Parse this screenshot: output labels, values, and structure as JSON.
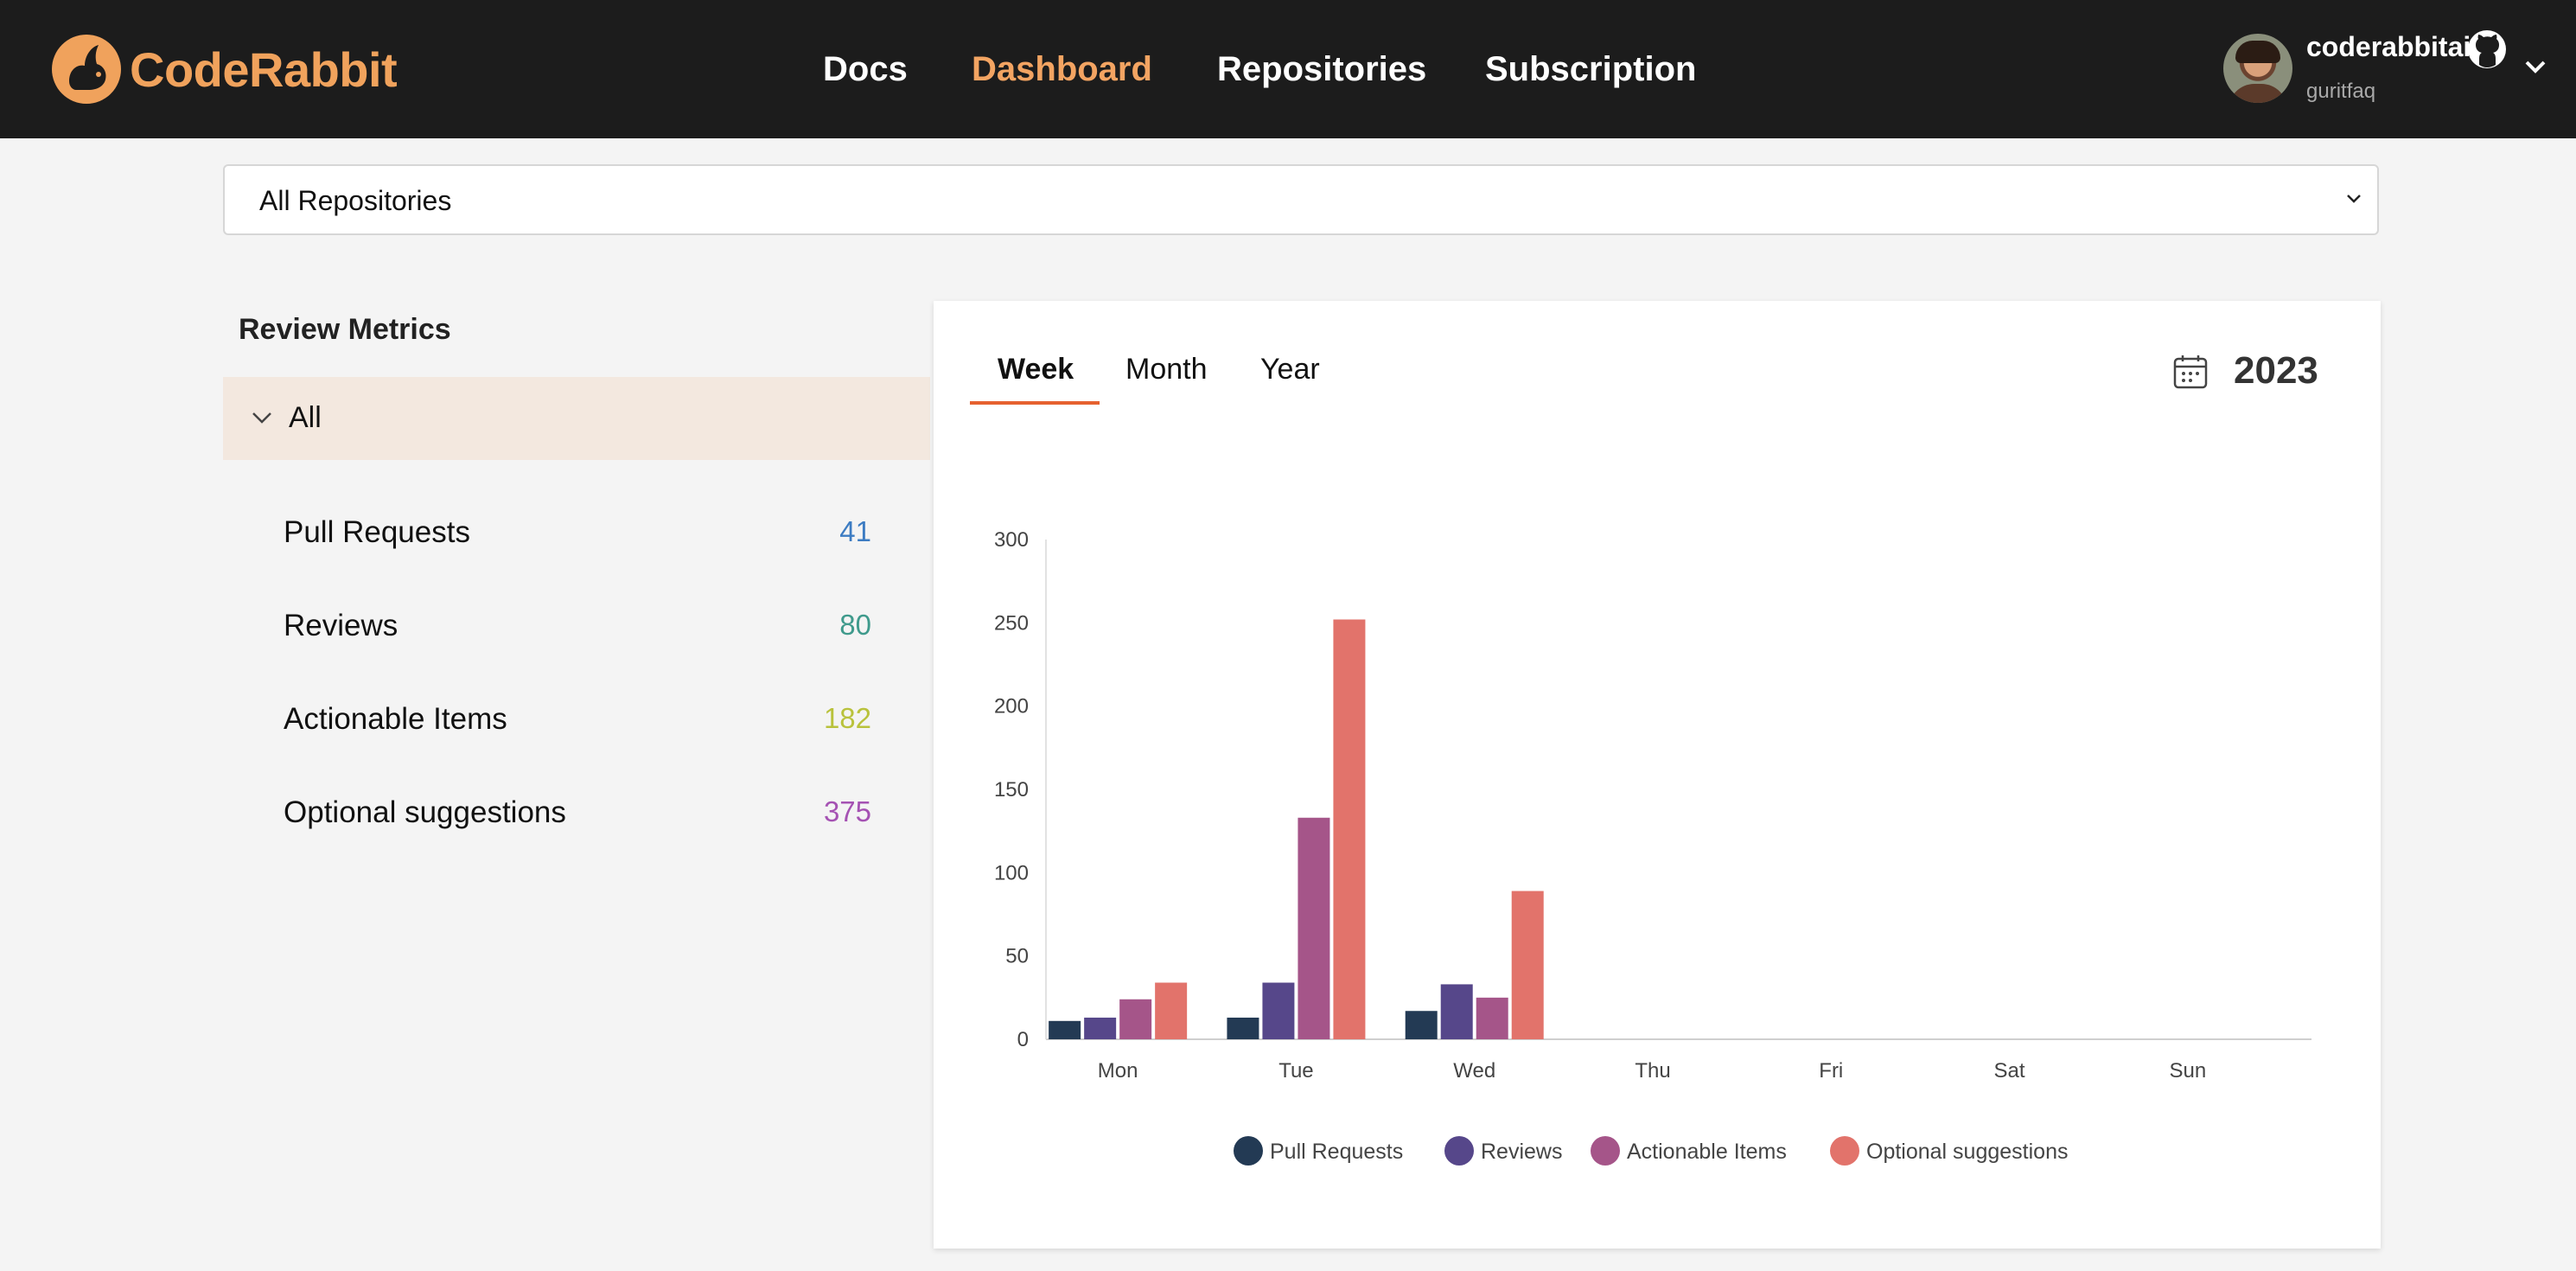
{
  "brand": {
    "name": "CodeRabbit",
    "color": "#f0a25c",
    "icon": "rabbit-logo-icon"
  },
  "nav": {
    "items": [
      {
        "label": "Docs",
        "active": false
      },
      {
        "label": "Dashboard",
        "active": true
      },
      {
        "label": "Repositories",
        "active": false
      },
      {
        "label": "Subscription",
        "active": false
      }
    ],
    "active_color": "#f3a462"
  },
  "user": {
    "name": "coderabbitai",
    "handle": "guritfaq",
    "provider_icon": "github-icon"
  },
  "repo_select": {
    "value": "All Repositories"
  },
  "metrics": {
    "title": "Review Metrics",
    "group_label": "All",
    "items": [
      {
        "label": "Pull Requests",
        "value": "41",
        "color": "#3d7cc2"
      },
      {
        "label": "Reviews",
        "value": "80",
        "color": "#3f9a8c"
      },
      {
        "label": "Actionable Items",
        "value": "182",
        "color": "#b9c23c"
      },
      {
        "label": "Optional suggestions",
        "value": "375",
        "color": "#a552b3"
      }
    ]
  },
  "period_tabs": [
    {
      "label": "Week",
      "active": true
    },
    {
      "label": "Month",
      "active": false
    },
    {
      "label": "Year",
      "active": false
    }
  ],
  "year": "2023",
  "chart_data": {
    "type": "bar",
    "categories": [
      "Mon",
      "Tue",
      "Wed",
      "Thu",
      "Fri",
      "Sat",
      "Sun"
    ],
    "series": [
      {
        "name": "Pull Requests",
        "color": "#233a54",
        "values": [
          11,
          13,
          17,
          0,
          0,
          0,
          0
        ]
      },
      {
        "name": "Reviews",
        "color": "#56478a",
        "values": [
          13,
          34,
          33,
          0,
          0,
          0,
          0
        ]
      },
      {
        "name": "Actionable Items",
        "color": "#a55589",
        "values": [
          24,
          133,
          25,
          0,
          0,
          0,
          0
        ]
      },
      {
        "name": "Optional suggestions",
        "color": "#e2736b",
        "values": [
          34,
          252,
          89,
          0,
          0,
          0,
          0
        ]
      }
    ],
    "yticks": [
      0,
      50,
      100,
      150,
      200,
      250,
      300
    ],
    "ylim": [
      0,
      300
    ],
    "legend": "bottom"
  }
}
